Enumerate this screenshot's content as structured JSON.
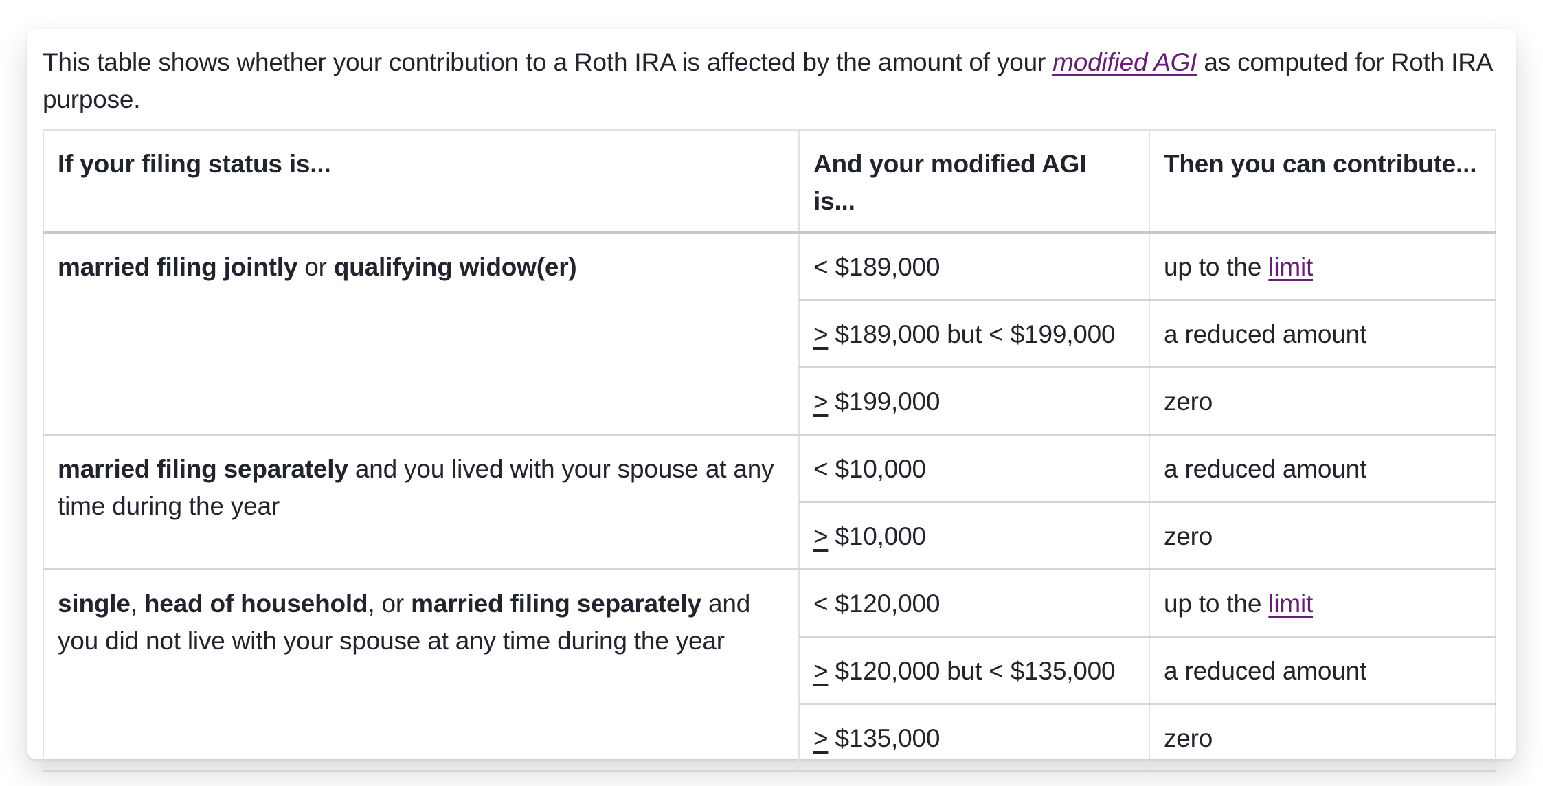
{
  "colors": {
    "link": "#671e75",
    "text": "#21242c",
    "border-v": "#e2e2e2",
    "border-h": "#d4d4d4",
    "border-head": "#c9c9c9"
  },
  "intro": {
    "before_link": "This table shows whether your contribution to a Roth IRA is affected by the amount of your ",
    "link_text": "modified AGI",
    "after_link": " as computed for Roth IRA purpose."
  },
  "table": {
    "headers": [
      "If your filing status is...",
      "And your modified AGI is...",
      "Then you can contribute..."
    ],
    "groups": [
      {
        "status_parts": [
          {
            "text": "married filing jointly",
            "bold": true
          },
          {
            "text": " or ",
            "bold": false
          },
          {
            "text": "qualifying widow(er)",
            "bold": true
          }
        ],
        "rows": [
          {
            "agi": {
              "op": "<",
              "op_underline": false,
              "rest": " $189,000"
            },
            "contribute": {
              "text": "up to the ",
              "link": "limit"
            }
          },
          {
            "agi": {
              "op": ">",
              "op_underline": true,
              "rest": " $189,000 but < $199,000"
            },
            "contribute": {
              "text": "a reduced amount",
              "link": null
            }
          },
          {
            "agi": {
              "op": ">",
              "op_underline": true,
              "rest": " $199,000"
            },
            "contribute": {
              "text": "zero",
              "link": null
            }
          }
        ]
      },
      {
        "status_parts": [
          {
            "text": "married filing separately",
            "bold": true
          },
          {
            "text": " and you lived with your spouse at any time during the year",
            "bold": false
          }
        ],
        "rows": [
          {
            "agi": {
              "op": "<",
              "op_underline": false,
              "rest": " $10,000"
            },
            "contribute": {
              "text": "a reduced amount",
              "link": null
            }
          },
          {
            "agi": {
              "op": ">",
              "op_underline": true,
              "rest": " $10,000"
            },
            "contribute": {
              "text": "zero",
              "link": null
            }
          }
        ]
      },
      {
        "status_parts": [
          {
            "text": "single",
            "bold": true
          },
          {
            "text": ", ",
            "bold": false
          },
          {
            "text": "head of household",
            "bold": true
          },
          {
            "text": ", or ",
            "bold": false
          },
          {
            "text": "married filing separately",
            "bold": true
          },
          {
            "text": " and you did not live with your spouse at any time during the year",
            "bold": false
          }
        ],
        "rows": [
          {
            "agi": {
              "op": "<",
              "op_underline": false,
              "rest": " $120,000"
            },
            "contribute": {
              "text": "up to the ",
              "link": "limit"
            }
          },
          {
            "agi": {
              "op": ">",
              "op_underline": true,
              "rest": " $120,000 but < $135,000"
            },
            "contribute": {
              "text": "a reduced amount",
              "link": null
            }
          },
          {
            "agi": {
              "op": ">",
              "op_underline": true,
              "rest": " $135,000"
            },
            "contribute": {
              "text": "zero",
              "link": null
            }
          }
        ]
      }
    ]
  }
}
